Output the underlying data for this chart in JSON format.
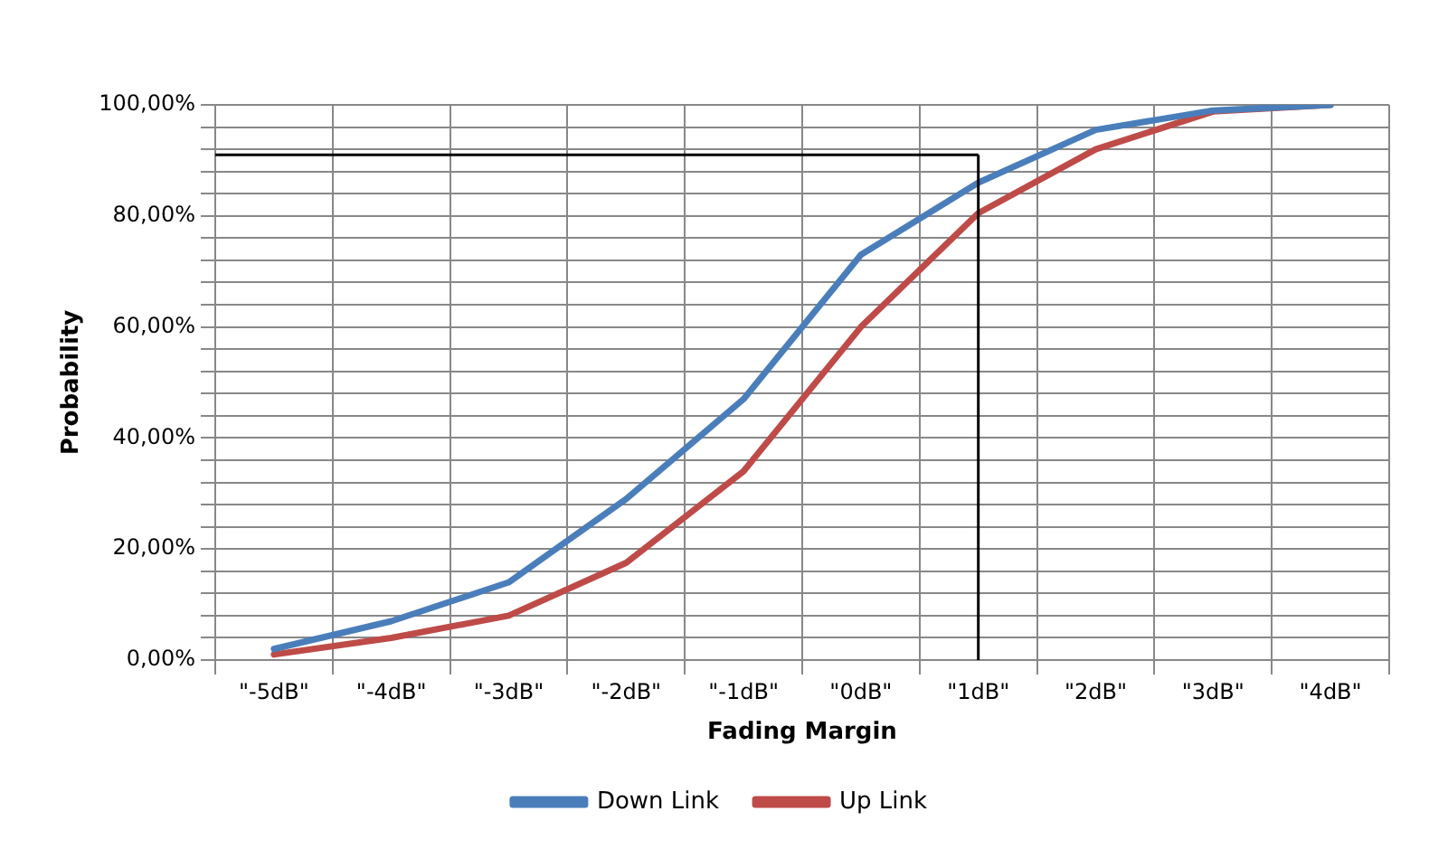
{
  "chart_data": {
    "type": "line",
    "xlabel": "Fading Margin",
    "ylabel": "Probability",
    "categories": [
      "\"-5dB\"",
      "\"-4dB\"",
      "\"-3dB\"",
      "\"-2dB\"",
      "\"-1dB\"",
      "\"0dB\"",
      "\"1dB\"",
      "\"2dB\"",
      "\"3dB\"",
      "\"4dB\""
    ],
    "series": [
      {
        "name": "Down Link",
        "color": "#4a7ebb",
        "values": [
          2,
          7,
          14,
          29,
          47,
          73,
          86,
          95.5,
          99,
          100
        ]
      },
      {
        "name": "Up Link",
        "color": "#be4b48",
        "values": [
          1,
          4,
          8,
          17.5,
          34,
          60,
          80.5,
          92,
          98.8,
          100
        ]
      }
    ],
    "ylim": [
      0,
      100
    ],
    "yticks": [
      {
        "value": 0,
        "label": "0,00%"
      },
      {
        "value": 4,
        "label": null
      },
      {
        "value": 8,
        "label": null
      },
      {
        "value": 12,
        "label": null
      },
      {
        "value": 16,
        "label": null
      },
      {
        "value": 20,
        "label": "20,00%"
      },
      {
        "value": 24,
        "label": null
      },
      {
        "value": 28,
        "label": null
      },
      {
        "value": 32,
        "label": null
      },
      {
        "value": 36,
        "label": null
      },
      {
        "value": 40,
        "label": "40,00%"
      },
      {
        "value": 44,
        "label": null
      },
      {
        "value": 48,
        "label": null
      },
      {
        "value": 52,
        "label": null
      },
      {
        "value": 56,
        "label": null
      },
      {
        "value": 60,
        "label": "60,00%"
      },
      {
        "value": 64,
        "label": null
      },
      {
        "value": 68,
        "label": null
      },
      {
        "value": 72,
        "label": null
      },
      {
        "value": 76,
        "label": null
      },
      {
        "value": 80,
        "label": "80,00%"
      },
      {
        "value": 84,
        "label": null
      },
      {
        "value": 88,
        "label": null
      },
      {
        "value": 92,
        "label": null
      },
      {
        "value": 96,
        "label": null
      },
      {
        "value": 100,
        "label": "100,00%"
      }
    ],
    "ref_lines": [
      {
        "axis": "y",
        "value": 91,
        "color": "#000000"
      },
      {
        "axis": "x",
        "value": "\"1dB\"",
        "color": "#000000"
      }
    ],
    "grid": true,
    "legend": "bottom",
    "marker": "none",
    "line_style": "solid"
  }
}
